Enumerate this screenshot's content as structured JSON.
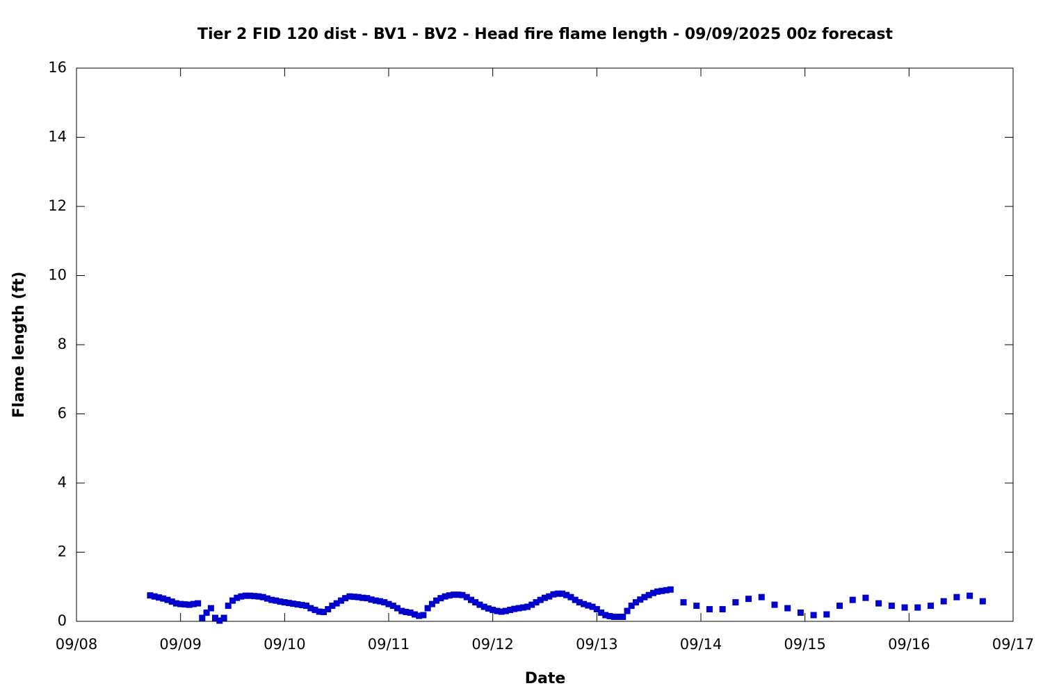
{
  "chart_data": {
    "type": "scatter",
    "title": "Tier 2 FID 120 dist - BV1 - BV2 - Head fire flame length - 09/09/2025 00z forecast",
    "xlabel": "Date",
    "ylabel": "Flame length (ft)",
    "color": "#0000cc",
    "xlim": [
      8,
      17
    ],
    "ylim": [
      0,
      16
    ],
    "xticks": [
      {
        "value": 8,
        "label": "09/08"
      },
      {
        "value": 9,
        "label": "09/09"
      },
      {
        "value": 10,
        "label": "09/10"
      },
      {
        "value": 11,
        "label": "09/11"
      },
      {
        "value": 12,
        "label": "09/12"
      },
      {
        "value": 13,
        "label": "09/13"
      },
      {
        "value": 14,
        "label": "09/14"
      },
      {
        "value": 15,
        "label": "09/15"
      },
      {
        "value": 16,
        "label": "09/16"
      },
      {
        "value": 17,
        "label": "09/17"
      }
    ],
    "yticks": [
      0,
      2,
      4,
      6,
      8,
      10,
      12,
      14,
      16
    ],
    "x": [
      8.708,
      8.75,
      8.792,
      8.833,
      8.875,
      8.917,
      8.958,
      9,
      9.042,
      9.083,
      9.125,
      9.167,
      9.208,
      9.25,
      9.292,
      9.333,
      9.375,
      9.417,
      9.458,
      9.5,
      9.542,
      9.583,
      9.625,
      9.667,
      9.708,
      9.75,
      9.792,
      9.833,
      9.875,
      9.917,
      9.958,
      10,
      10.042,
      10.083,
      10.125,
      10.167,
      10.208,
      10.25,
      10.292,
      10.333,
      10.375,
      10.417,
      10.458,
      10.5,
      10.542,
      10.583,
      10.625,
      10.667,
      10.708,
      10.75,
      10.792,
      10.833,
      10.875,
      10.917,
      10.958,
      11,
      11.042,
      11.083,
      11.125,
      11.167,
      11.208,
      11.25,
      11.292,
      11.333,
      11.375,
      11.417,
      11.458,
      11.5,
      11.542,
      11.583,
      11.625,
      11.667,
      11.708,
      11.75,
      11.792,
      11.833,
      11.875,
      11.917,
      11.958,
      12,
      12.042,
      12.083,
      12.125,
      12.167,
      12.208,
      12.25,
      12.292,
      12.333,
      12.375,
      12.417,
      12.458,
      12.5,
      12.542,
      12.583,
      12.625,
      12.667,
      12.708,
      12.75,
      12.792,
      12.833,
      12.875,
      12.917,
      12.958,
      13,
      13.042,
      13.083,
      13.125,
      13.167,
      13.208,
      13.25,
      13.292,
      13.333,
      13.375,
      13.417,
      13.458,
      13.5,
      13.542,
      13.583,
      13.625,
      13.667,
      13.708,
      13.833,
      13.958,
      14.083,
      14.208,
      14.333,
      14.458,
      14.583,
      14.708,
      14.833,
      14.958,
      15.083,
      15.208,
      15.333,
      15.458,
      15.583,
      15.708,
      15.833,
      15.958,
      16.083,
      16.208,
      16.333,
      16.458,
      16.583,
      16.708
    ],
    "values": [
      0.75,
      0.72,
      0.69,
      0.66,
      0.62,
      0.57,
      0.52,
      0.5,
      0.49,
      0.48,
      0.5,
      0.52,
      0.1,
      0.25,
      0.38,
      0.1,
      0.02,
      0.1,
      0.45,
      0.6,
      0.68,
      0.72,
      0.74,
      0.74,
      0.73,
      0.72,
      0.7,
      0.66,
      0.62,
      0.6,
      0.57,
      0.55,
      0.53,
      0.51,
      0.49,
      0.47,
      0.45,
      0.38,
      0.33,
      0.28,
      0.27,
      0.35,
      0.45,
      0.52,
      0.6,
      0.67,
      0.72,
      0.71,
      0.7,
      0.68,
      0.67,
      0.63,
      0.6,
      0.58,
      0.55,
      0.5,
      0.45,
      0.38,
      0.3,
      0.27,
      0.25,
      0.2,
      0.16,
      0.18,
      0.38,
      0.5,
      0.6,
      0.67,
      0.72,
      0.75,
      0.77,
      0.77,
      0.76,
      0.7,
      0.62,
      0.55,
      0.48,
      0.42,
      0.37,
      0.33,
      0.3,
      0.28,
      0.3,
      0.33,
      0.36,
      0.38,
      0.4,
      0.42,
      0.48,
      0.55,
      0.62,
      0.68,
      0.72,
      0.78,
      0.8,
      0.8,
      0.76,
      0.7,
      0.62,
      0.55,
      0.5,
      0.46,
      0.42,
      0.35,
      0.25,
      0.18,
      0.15,
      0.13,
      0.13,
      0.13,
      0.3,
      0.45,
      0.55,
      0.63,
      0.7,
      0.76,
      0.82,
      0.86,
      0.88,
      0.9,
      0.92,
      0.55,
      0.45,
      0.35,
      0.35,
      0.55,
      0.65,
      0.7,
      0.48,
      0.38,
      0.25,
      0.18,
      0.2,
      0.45,
      0.62,
      0.68,
      0.52,
      0.45,
      0.4,
      0.4,
      0.45,
      0.58,
      0.7,
      0.74,
      0.58
    ]
  }
}
